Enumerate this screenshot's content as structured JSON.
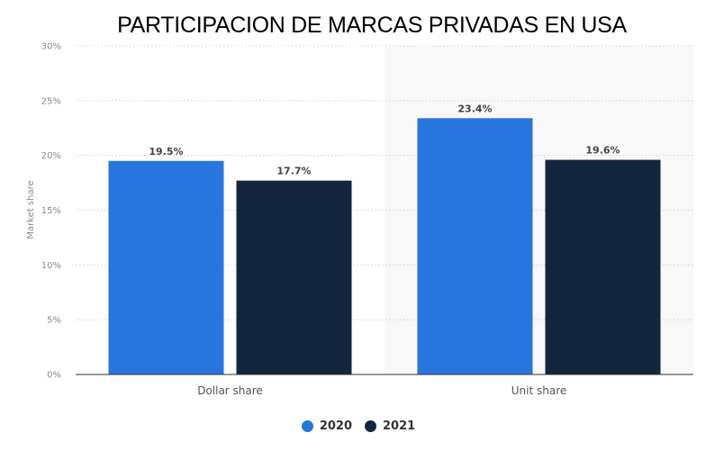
{
  "chart_data": {
    "type": "bar",
    "title": "PARTICIPACION DE MARCAS PRIVADAS EN USA",
    "ylabel": "Market share",
    "xlabel": "",
    "categories": [
      "Dollar share",
      "Unit share"
    ],
    "series": [
      {
        "name": "2020",
        "values": [
          19.5,
          23.4
        ],
        "labels": [
          "19.5%",
          "23.4%"
        ],
        "color": "#2876dd"
      },
      {
        "name": "2021",
        "values": [
          17.7,
          19.6
        ],
        "labels": [
          "17.7%",
          "19.6%"
        ],
        "color": "#13263d"
      }
    ],
    "ylim": [
      0,
      30
    ],
    "yticks": [
      0,
      5,
      10,
      15,
      20,
      25,
      30
    ],
    "ytick_labels": [
      "0%",
      "5%",
      "10%",
      "15%",
      "20%",
      "25%",
      "30%"
    ],
    "grid": true,
    "legend_position": "bottom-center"
  }
}
